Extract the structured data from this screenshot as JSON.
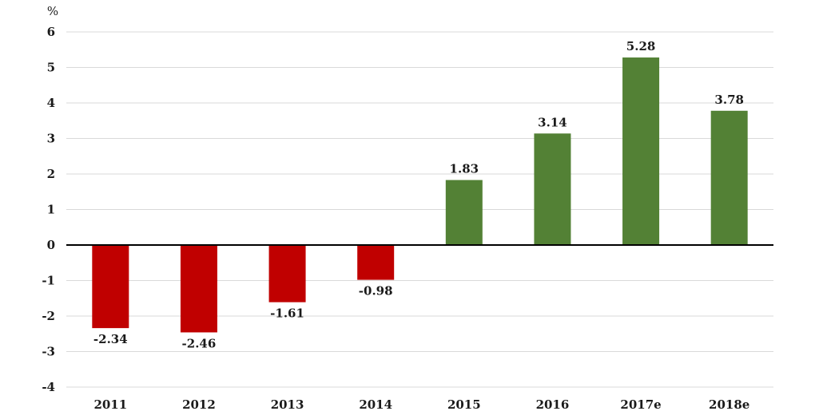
{
  "chart_data": {
    "type": "bar",
    "title": "",
    "xlabel": "",
    "ylabel": "%",
    "categories": [
      "2011",
      "2012",
      "2013",
      "2014",
      "2015",
      "2016",
      "2017e",
      "2018e"
    ],
    "values": [
      -2.34,
      -2.46,
      -1.61,
      -0.98,
      1.83,
      3.14,
      5.28,
      3.78
    ],
    "data_labels": [
      "-2.34",
      "-2.46",
      "-1.61",
      "-0.98",
      "1.83",
      "3.14",
      "5.28",
      "3.78"
    ],
    "ylim": [
      -4,
      6
    ],
    "yticks": [
      6,
      5,
      4,
      3,
      2,
      1,
      0,
      -1,
      -2,
      -3,
      -4
    ],
    "ytick_labels": [
      "6",
      "5",
      "4",
      "3",
      "2",
      "1",
      "0",
      "-1",
      "-2",
      "-3",
      "-4"
    ],
    "grid": true,
    "legend": "none",
    "colors": {
      "positive": "#538135",
      "negative": "#c00000",
      "grid": "#d9d9d9",
      "zero_line": "#000000"
    }
  }
}
